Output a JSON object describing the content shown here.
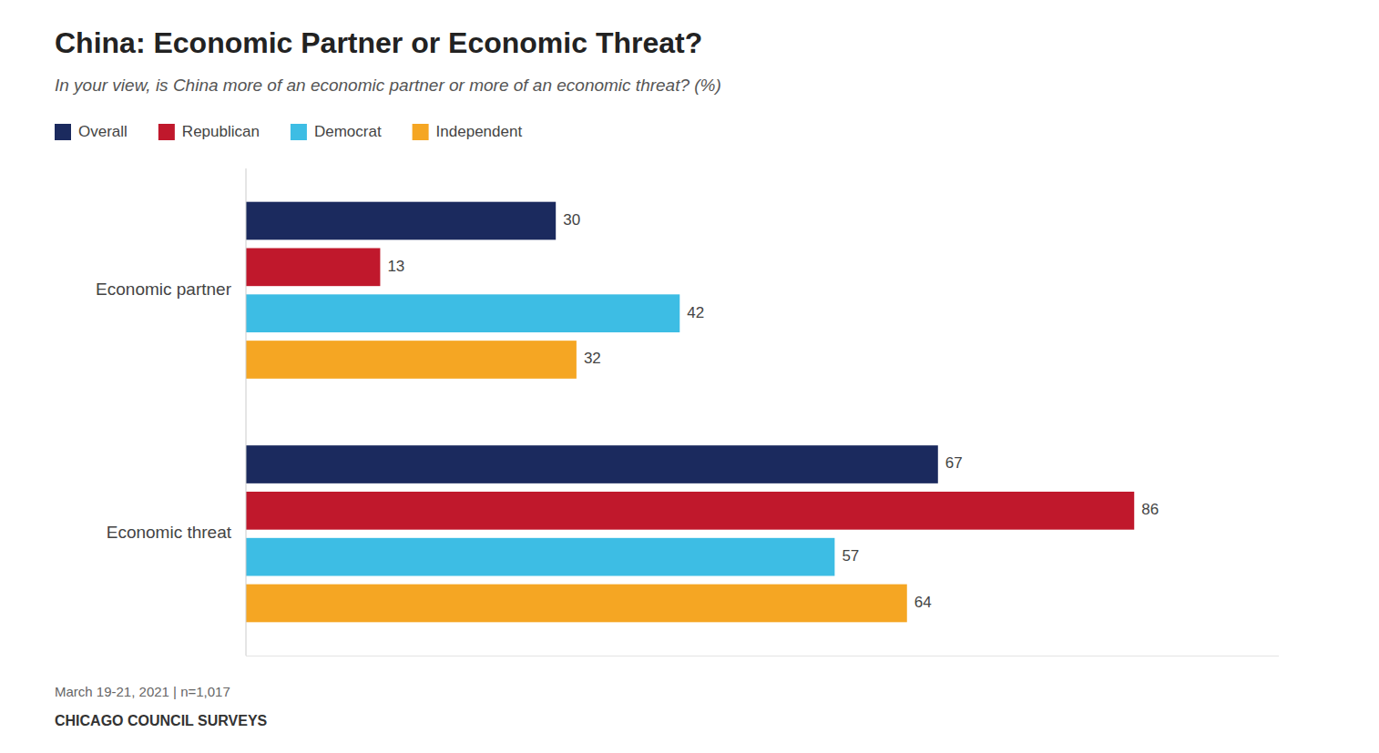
{
  "chart_data": {
    "type": "bar",
    "orientation": "horizontal",
    "title": "China: Economic Partner or Economic Threat?",
    "subtitle": "In your view, is China more of an economic partner or more of an economic threat? (%)",
    "annotations": [
      "March 19-21, 2021 | n=1,017",
      "CHICAGO COUNCIL SURVEYS"
    ],
    "categories": [
      "Economic partner",
      "Economic threat"
    ],
    "series": [
      {
        "name": "Overall",
        "color": "#1b2a5e",
        "values": [
          30,
          67
        ]
      },
      {
        "name": "Republican",
        "color": "#c0182c",
        "values": [
          13,
          86
        ]
      },
      {
        "name": "Democrat",
        "color": "#3dbde4",
        "values": [
          42,
          57
        ]
      },
      {
        "name": "Independent",
        "color": "#f5a623",
        "values": [
          32,
          64
        ]
      }
    ],
    "xlim": [
      0,
      100
    ],
    "data_labels": true,
    "tick_labels": "y",
    "grid": false,
    "legend": "top"
  }
}
